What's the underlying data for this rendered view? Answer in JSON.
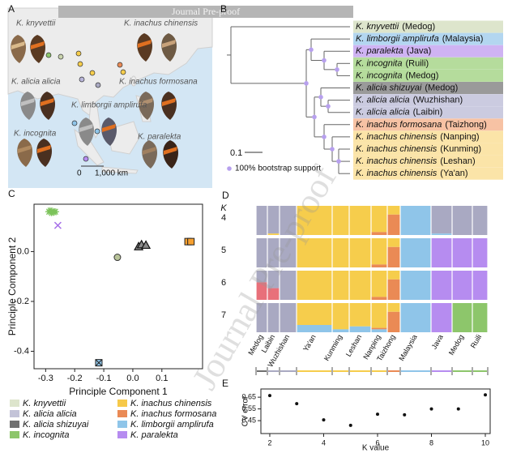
{
  "header": {
    "banner": "Journal Pre-proof",
    "watermark": "Journal Pre-proof"
  },
  "panels": {
    "a": "A",
    "b": "B",
    "c": "C",
    "d": "D",
    "e": "E"
  },
  "map": {
    "labels": [
      "K. knyvettii",
      "K. inachus chinensis",
      "K. alicia alicia",
      "K. inachus formosana",
      "K. limborgii amplirufa",
      "K. incognita",
      "K. paralekta"
    ],
    "scale": [
      "0",
      "1,000 km"
    ]
  },
  "tree": {
    "taxa": [
      {
        "name": "K. knyvettii",
        "location": "(Medog)",
        "color": "#dde5cc"
      },
      {
        "name": "K. limborgii amplirufa",
        "location": "(Malaysia)",
        "color": "#b3d6f0"
      },
      {
        "name": "K. paralekta",
        "location": "(Java)",
        "color": "#cfb3f3"
      },
      {
        "name": "K. incognita",
        "location": "(Ruili)",
        "color": "#b5dc9c"
      },
      {
        "name": "K. incognita",
        "location": "(Medog)",
        "color": "#b5dc9c"
      },
      {
        "name": "K. alicia shizuyai",
        "location": "(Medog)",
        "color": "#9a9a9a"
      },
      {
        "name": "K. alicia alicia",
        "location": "(Wuzhishan)",
        "color": "#cbcbe0"
      },
      {
        "name": "K. alicia alicia",
        "location": "(Laibin)",
        "color": "#cbcbe0"
      },
      {
        "name": "K. inachus formosana",
        "location": "(Taizhong)",
        "color": "#f7c2a4"
      },
      {
        "name": "K. inachus chinensis",
        "location": "(Nanping)",
        "color": "#fbe4a8"
      },
      {
        "name": "K. inachus chinensis",
        "location": "(Kunming)",
        "color": "#fbe4a8"
      },
      {
        "name": "K. inachus chinensis",
        "location": "(Leshan)",
        "color": "#fbe4a8"
      },
      {
        "name": "K. inachus chinensis",
        "location": "(Ya'an)",
        "color": "#fbe4a8"
      }
    ],
    "scale_label": "0.1",
    "bootstrap_label": "100% bootstrap support"
  },
  "chart_data": [
    {
      "type": "scatter",
      "xlabel": "Principle Component 1",
      "ylabel": "Principle Component 2",
      "xlim": [
        -0.34,
        0.24
      ],
      "ylim": [
        -0.47,
        0.19
      ],
      "xticks": [
        -0.3,
        -0.2,
        -0.1,
        {
          "value": 0,
          "label": "0.0"
        },
        0.1
      ],
      "yticks": [
        {
          "value": 0,
          "label": "0.0"
        },
        -0.2,
        -0.4
      ],
      "series": [
        {
          "marker": "asterisk",
          "color": "#7cc35a",
          "x": [
            -0.29,
            -0.285,
            -0.28,
            -0.275,
            -0.27,
            -0.265
          ],
          "y": [
            0.16,
            0.165,
            0.155,
            0.162,
            0.158,
            0.16
          ]
        },
        {
          "marker": "x",
          "color": "#a56ee8",
          "x": [
            -0.258
          ],
          "y": [
            0.105
          ]
        },
        {
          "marker": "circle",
          "color": "#b9c49a",
          "x": [
            -0.053
          ],
          "y": [
            -0.023
          ]
        },
        {
          "marker": "triangle",
          "color": "#8a8a8a",
          "x": [
            0.02,
            0.03,
            0.045
          ],
          "y": [
            0.02,
            0.028,
            0.026
          ]
        },
        {
          "marker": "square",
          "color": "#f6a030",
          "x": [
            0.19,
            0.2
          ],
          "y": [
            0.04,
            0.04
          ]
        },
        {
          "marker": "crossed-square",
          "color": "#8fc5e9",
          "x": [
            -0.117
          ],
          "y": [
            -0.446
          ]
        }
      ]
    },
    {
      "type": "scatter",
      "xlabel": "K value",
      "ylabel": "CV error",
      "xlim": [
        1.67,
        10.18
      ],
      "ylim": [
        0.34,
        0.72
      ],
      "xticks": [
        2,
        4,
        6,
        8,
        10
      ],
      "yticks": [
        0.65,
        0.55,
        0.45
      ],
      "series": [
        {
          "marker": "dot",
          "color": "#111111",
          "x": [
            2,
            3,
            4,
            5,
            6,
            7,
            8,
            9,
            10
          ],
          "y": [
            0.664,
            0.595,
            0.457,
            0.41,
            0.505,
            0.5,
            0.55,
            0.55,
            0.67
          ]
        }
      ]
    }
  ],
  "admixture": {
    "k_label": "K",
    "populations": [
      "Medog",
      "Laibin",
      "Wuzhishan",
      "Ya'an",
      "Kunming",
      "Leshan",
      "Nanping",
      "Taizhong",
      "Malaysia",
      "Java",
      "Medog",
      "Ruili"
    ],
    "rows": [
      {
        "k": 4,
        "colors": [
          "#a9a9c2",
          "#f6cd4c",
          "#ea8a55",
          "#8fc5e9"
        ],
        "proportions": [
          [
            1,
            0,
            0,
            0
          ],
          [
            0.95,
            0.05,
            0,
            0
          ],
          [
            1,
            0,
            0,
            0
          ],
          [
            0,
            1,
            0,
            0
          ],
          [
            0,
            1,
            0,
            0
          ],
          [
            0,
            1,
            0,
            0
          ],
          [
            0,
            0.9,
            0.1,
            0
          ],
          [
            0,
            0.3,
            0.7,
            0
          ],
          [
            0,
            0,
            0,
            1
          ],
          [
            0.95,
            0,
            0,
            0.05
          ],
          [
            1,
            0,
            0,
            0
          ],
          [
            1,
            0,
            0,
            0
          ]
        ]
      },
      {
        "k": 5,
        "colors": [
          "#a9a9c2",
          "#f6cd4c",
          "#ea8a55",
          "#8fc5e9",
          "#b68cf0"
        ],
        "proportions": [
          [
            1,
            0,
            0,
            0,
            0
          ],
          [
            1,
            0,
            0,
            0,
            0
          ],
          [
            1,
            0,
            0,
            0,
            0
          ],
          [
            0,
            1,
            0,
            0,
            0
          ],
          [
            0,
            1,
            0,
            0,
            0
          ],
          [
            0,
            1,
            0,
            0,
            0
          ],
          [
            0,
            0.9,
            0.1,
            0,
            0
          ],
          [
            0,
            0.3,
            0.7,
            0,
            0
          ],
          [
            0,
            0,
            0,
            1,
            0
          ],
          [
            0,
            0,
            0,
            0,
            1
          ],
          [
            0,
            0,
            0,
            0,
            1
          ],
          [
            0,
            0,
            0,
            0,
            1
          ]
        ]
      },
      {
        "k": 6,
        "colors": [
          "#a9a9c2",
          "#e8707a",
          "#f6cd4c",
          "#ea8a55",
          "#8fc5e9",
          "#b68cf0"
        ],
        "proportions": [
          [
            0.4,
            0.6,
            0,
            0,
            0,
            0
          ],
          [
            0.6,
            0.4,
            0,
            0,
            0,
            0
          ],
          [
            1,
            0,
            0,
            0,
            0,
            0
          ],
          [
            0,
            0,
            1,
            0,
            0,
            0
          ],
          [
            0,
            0,
            1,
            0,
            0,
            0
          ],
          [
            0,
            0,
            1,
            0,
            0,
            0
          ],
          [
            0,
            0,
            0.9,
            0.1,
            0,
            0
          ],
          [
            0,
            0,
            0.3,
            0.7,
            0,
            0
          ],
          [
            0,
            0,
            0,
            0,
            1,
            0
          ],
          [
            0,
            0,
            0,
            0,
            0,
            1
          ],
          [
            0,
            0,
            0,
            0,
            0,
            1
          ],
          [
            0,
            0,
            0,
            0,
            0,
            1
          ]
        ]
      },
      {
        "k": 7,
        "colors": [
          "#a9a9c2",
          "#e8707a",
          "#f6cd4c",
          "#ea8a55",
          "#8fc5e9",
          "#b68cf0",
          "#8dc66b"
        ],
        "proportions": [
          [
            1,
            0,
            0,
            0,
            0,
            0,
            0
          ],
          [
            1,
            0,
            0,
            0,
            0,
            0,
            0
          ],
          [
            1,
            0,
            0,
            0,
            0,
            0,
            0
          ],
          [
            0,
            0,
            0.75,
            0,
            0.25,
            0,
            0
          ],
          [
            0,
            0,
            0.9,
            0,
            0.1,
            0,
            0
          ],
          [
            0,
            0,
            0.8,
            0,
            0.2,
            0,
            0
          ],
          [
            0,
            0,
            0.85,
            0.05,
            0.1,
            0,
            0
          ],
          [
            0,
            0,
            0.3,
            0.7,
            0,
            0,
            0
          ],
          [
            0,
            0,
            0,
            0,
            1,
            0,
            0
          ],
          [
            0,
            0,
            0,
            0,
            0,
            1,
            0
          ],
          [
            0,
            0,
            0,
            0,
            0,
            0,
            1
          ],
          [
            0,
            0,
            0,
            0,
            0,
            0,
            1
          ]
        ]
      }
    ]
  },
  "legend": [
    {
      "label": "K. knyvettii",
      "color": "#dde5cc"
    },
    {
      "label": "K. alicia alicia",
      "color": "#c3c3d8"
    },
    {
      "label": "K. alicia shizuyai",
      "color": "#707070"
    },
    {
      "label": "K. incognita",
      "color": "#8dc66b"
    },
    {
      "label": "K. inachus chinensis",
      "color": "#f6c94a"
    },
    {
      "label": "K. inachus formosana",
      "color": "#ea8a55"
    },
    {
      "label": "K. limborgii amplirufa",
      "color": "#8fc5e9"
    },
    {
      "label": "K. paralekta",
      "color": "#b68cf0"
    }
  ]
}
